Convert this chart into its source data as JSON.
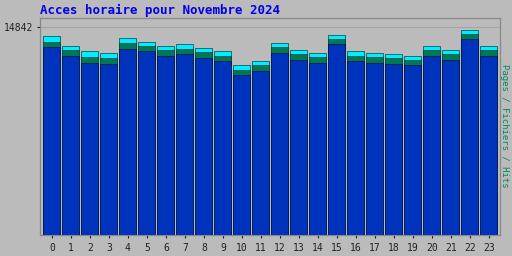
{
  "title": "Acces horaire pour Novembre 2024",
  "hours": [
    0,
    1,
    2,
    3,
    4,
    5,
    6,
    7,
    8,
    9,
    10,
    11,
    12,
    13,
    14,
    15,
    16,
    17,
    18,
    19,
    20,
    21,
    22,
    23
  ],
  "hits": [
    14200,
    13500,
    13100,
    12950,
    14050,
    13800,
    13500,
    13600,
    13350,
    13100,
    12100,
    12400,
    13700,
    13200,
    13000,
    14300,
    13100,
    13000,
    12900,
    12800,
    13500,
    13200,
    14650,
    13500
  ],
  "fichiers": [
    13800,
    13200,
    12700,
    12600,
    13700,
    13500,
    13200,
    13300,
    13050,
    12800,
    11800,
    12100,
    13400,
    12900,
    12700,
    14000,
    12800,
    12700,
    12600,
    12500,
    13200,
    12900,
    14350,
    13200
  ],
  "pages": [
    13400,
    12800,
    12300,
    12200,
    13300,
    13100,
    12800,
    12900,
    12650,
    12400,
    11400,
    11700,
    13000,
    12500,
    12300,
    13600,
    12400,
    12300,
    12200,
    12100,
    12800,
    12500,
    13950,
    12800
  ],
  "ymax": 15500,
  "ytick_val": 14842,
  "ytick_label": "14842",
  "bar_width": 0.9,
  "color_hits": "#00EEFF",
  "color_fichiers": "#007755",
  "color_pages": "#0033BB",
  "bg_color": "#BBBBBB",
  "plot_bg": "#BBBBBB",
  "title_color": "#0000EE",
  "ylabel_color": "#008866",
  "ylabel": "Pages / Fichiers / Hits"
}
